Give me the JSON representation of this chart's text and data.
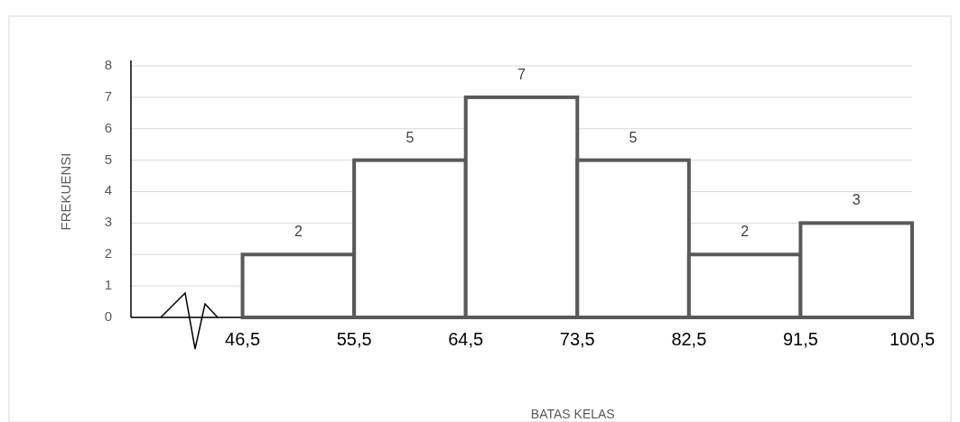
{
  "chart_data": {
    "type": "histogram",
    "xlabel": "BATAS KELAS",
    "ylabel": "FREKUENSI",
    "bins": [
      46.5,
      55.5,
      64.5,
      73.5,
      82.5,
      91.5,
      100.5
    ],
    "values": [
      2,
      5,
      7,
      5,
      2,
      3
    ],
    "color": "#ffffff",
    "xlim": [
      37.5,
      100.5
    ],
    "xticks": [
      {
        "value": 46.5,
        "label": "46,5"
      },
      {
        "value": 55.5,
        "label": "55,5"
      },
      {
        "value": 64.5,
        "label": "64,5"
      },
      {
        "value": 73.5,
        "label": "73,5"
      },
      {
        "value": 82.5,
        "label": "82,5"
      },
      {
        "value": 91.5,
        "label": "91,5"
      },
      {
        "value": 100.5,
        "label": "100,5"
      }
    ],
    "ylim": [
      0,
      8
    ],
    "yticks": [
      0,
      1,
      2,
      3,
      4,
      5,
      6,
      7,
      8
    ],
    "grid": "y",
    "data_labels": true
  }
}
